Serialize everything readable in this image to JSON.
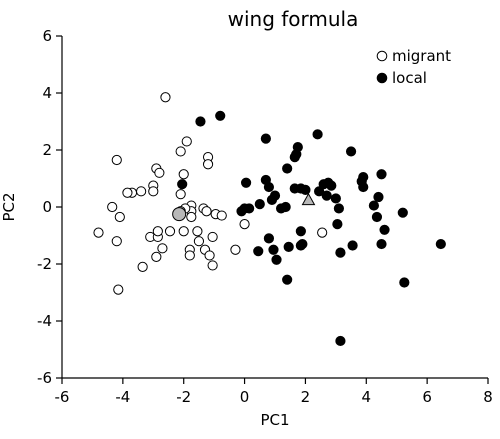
{
  "chart_data": {
    "type": "scatter",
    "title": "wing formula",
    "xlabel": "PC1",
    "ylabel": "PC2",
    "xlim": [
      -6,
      8
    ],
    "ylim": [
      -6,
      6
    ],
    "xticks": [
      -6,
      -4,
      -2,
      0,
      2,
      4,
      6,
      8
    ],
    "yticks": [
      -6,
      -4,
      -2,
      0,
      2,
      4,
      6
    ],
    "legend_position": "top-right",
    "series": [
      {
        "name": "migrant",
        "marker": "open-circle",
        "color": "#000000",
        "points": [
          [
            -2.6,
            3.85
          ],
          [
            -1.9,
            2.3
          ],
          [
            -2.1,
            1.95
          ],
          [
            -1.2,
            1.75
          ],
          [
            -1.2,
            1.5
          ],
          [
            -4.2,
            1.65
          ],
          [
            -2.9,
            1.35
          ],
          [
            -2.8,
            1.2
          ],
          [
            -2.0,
            1.15
          ],
          [
            -3.0,
            0.75
          ],
          [
            -3.0,
            0.55
          ],
          [
            -3.4,
            0.55
          ],
          [
            -3.7,
            0.5
          ],
          [
            -3.85,
            0.5
          ],
          [
            -2.1,
            0.45
          ],
          [
            -4.1,
            -0.35
          ],
          [
            -4.35,
            0.0
          ],
          [
            -1.75,
            0.05
          ],
          [
            -1.75,
            -0.15
          ],
          [
            -1.75,
            -0.35
          ],
          [
            -1.95,
            -0.05
          ],
          [
            -2.1,
            -0.15
          ],
          [
            -1.35,
            -0.05
          ],
          [
            -1.25,
            -0.15
          ],
          [
            -0.95,
            -0.25
          ],
          [
            -0.75,
            -0.3
          ],
          [
            -4.8,
            -0.9
          ],
          [
            -4.2,
            -1.2
          ],
          [
            -3.1,
            -1.05
          ],
          [
            -2.85,
            -1.05
          ],
          [
            -2.85,
            -0.85
          ],
          [
            -2.45,
            -0.85
          ],
          [
            -2.0,
            -0.85
          ],
          [
            -1.55,
            -0.85
          ],
          [
            -1.05,
            -1.05
          ],
          [
            -1.5,
            -1.2
          ],
          [
            -1.3,
            -1.5
          ],
          [
            -1.8,
            -1.5
          ],
          [
            -2.7,
            -1.45
          ],
          [
            -2.9,
            -1.75
          ],
          [
            -1.15,
            -1.7
          ],
          [
            -1.8,
            -1.7
          ],
          [
            -1.05,
            -2.05
          ],
          [
            -3.35,
            -2.1
          ],
          [
            -4.15,
            -2.9
          ],
          [
            -0.3,
            -1.5
          ],
          [
            0.0,
            -0.6
          ],
          [
            2.55,
            -0.9
          ]
        ]
      },
      {
        "name": "local",
        "marker": "filled-circle",
        "color": "#000000",
        "points": [
          [
            -1.45,
            3.0
          ],
          [
            -0.8,
            3.2
          ],
          [
            -2.05,
            0.8
          ],
          [
            0.05,
            0.85
          ],
          [
            0.7,
            2.4
          ],
          [
            1.4,
            1.35
          ],
          [
            1.65,
            1.75
          ],
          [
            1.7,
            1.85
          ],
          [
            1.75,
            2.1
          ],
          [
            2.4,
            2.55
          ],
          [
            1.0,
            0.4
          ],
          [
            0.7,
            0.95
          ],
          [
            0.8,
            0.7
          ],
          [
            0.5,
            0.1
          ],
          [
            0.9,
            0.25
          ],
          [
            1.2,
            -0.05
          ],
          [
            1.35,
            0.0
          ],
          [
            1.65,
            0.65
          ],
          [
            1.85,
            0.65
          ],
          [
            2.0,
            0.6
          ],
          [
            2.45,
            0.55
          ],
          [
            2.6,
            0.8
          ],
          [
            2.75,
            0.85
          ],
          [
            2.85,
            0.75
          ],
          [
            2.7,
            0.4
          ],
          [
            3.0,
            0.3
          ],
          [
            3.1,
            -0.05
          ],
          [
            3.05,
            -0.6
          ],
          [
            3.5,
            1.95
          ],
          [
            3.85,
            0.9
          ],
          [
            3.9,
            1.05
          ],
          [
            3.9,
            0.7
          ],
          [
            4.5,
            1.15
          ],
          [
            4.4,
            0.35
          ],
          [
            4.25,
            0.05
          ],
          [
            4.35,
            -0.35
          ],
          [
            4.6,
            -0.8
          ],
          [
            4.5,
            -1.3
          ],
          [
            5.2,
            -0.2
          ],
          [
            5.25,
            -2.65
          ],
          [
            6.45,
            -1.3
          ],
          [
            3.55,
            -1.35
          ],
          [
            3.15,
            -1.6
          ],
          [
            1.85,
            -0.85
          ],
          [
            1.85,
            -1.35
          ],
          [
            1.45,
            -1.4
          ],
          [
            1.05,
            -1.85
          ],
          [
            0.8,
            -1.1
          ],
          [
            0.95,
            -1.5
          ],
          [
            0.45,
            -1.55
          ],
          [
            -0.1,
            -0.15
          ],
          [
            0.15,
            -0.05
          ],
          [
            0.0,
            -0.05
          ],
          [
            1.4,
            -2.55
          ],
          [
            3.15,
            -4.7
          ],
          [
            1.9,
            -1.3
          ]
        ]
      },
      {
        "name": "",
        "marker": "large-grey-circle",
        "color": "#b8b8b8",
        "points": [
          [
            -2.15,
            -0.25
          ]
        ]
      },
      {
        "name": "",
        "marker": "grey-triangle",
        "color": "#b8b8b8",
        "points": [
          [
            2.1,
            0.25
          ]
        ]
      }
    ]
  }
}
